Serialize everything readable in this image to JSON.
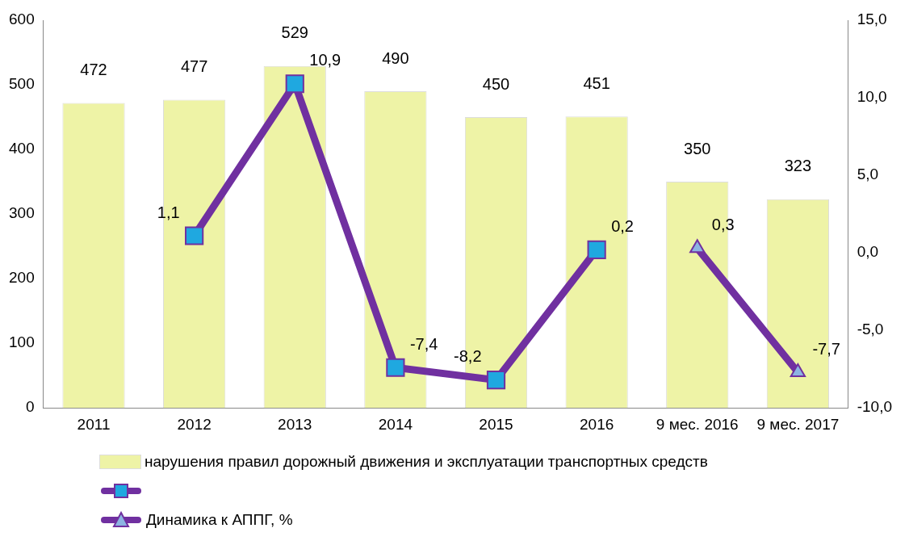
{
  "chart_data": {
    "type": "bar",
    "categories": [
      "2011",
      "2012",
      "2013",
      "2014",
      "2015",
      "2016",
      "9 мес. 2016",
      "9 мес. 2017"
    ],
    "series": [
      {
        "name": "нарушения правил дорожный движения и эксплуатации транспортных средств",
        "color": "#eef3a6",
        "values": [
          472,
          477,
          529,
          490,
          450,
          451,
          350,
          323
        ]
      },
      {
        "type": "line",
        "axis": "y2",
        "color": "#7030a0",
        "marker": "square",
        "values": [
          null,
          1.1,
          10.9,
          -7.4,
          -8.2,
          0.2,
          null,
          null
        ],
        "value_labels": [
          null,
          "1,1",
          "10,9",
          "-7,4",
          "-8,2",
          "0,2",
          null,
          null
        ]
      },
      {
        "name": "Динамика к АППГ, %",
        "type": "line",
        "axis": "y2",
        "color": "#7030a0",
        "marker": "triangle",
        "values": [
          null,
          null,
          null,
          null,
          null,
          null,
          0.3,
          -7.7
        ],
        "value_labels": [
          null,
          null,
          null,
          null,
          null,
          null,
          "0,3",
          "-7,7"
        ]
      }
    ],
    "ylim": [
      0,
      600
    ],
    "yticks": [
      0,
      100,
      200,
      300,
      400,
      500,
      600
    ],
    "y2lim": [
      -10,
      15
    ],
    "y2ticks": [
      {
        "value": -10,
        "label": "-10,0"
      },
      {
        "value": -5,
        "label": "-5,0"
      },
      {
        "value": 0,
        "label": "0,0"
      },
      {
        "value": 5,
        "label": "5,0"
      },
      {
        "value": 10,
        "label": "10,0"
      },
      {
        "value": 15,
        "label": "15,0"
      }
    ],
    "data_labels": true,
    "grid": false,
    "legend": "bottom"
  }
}
